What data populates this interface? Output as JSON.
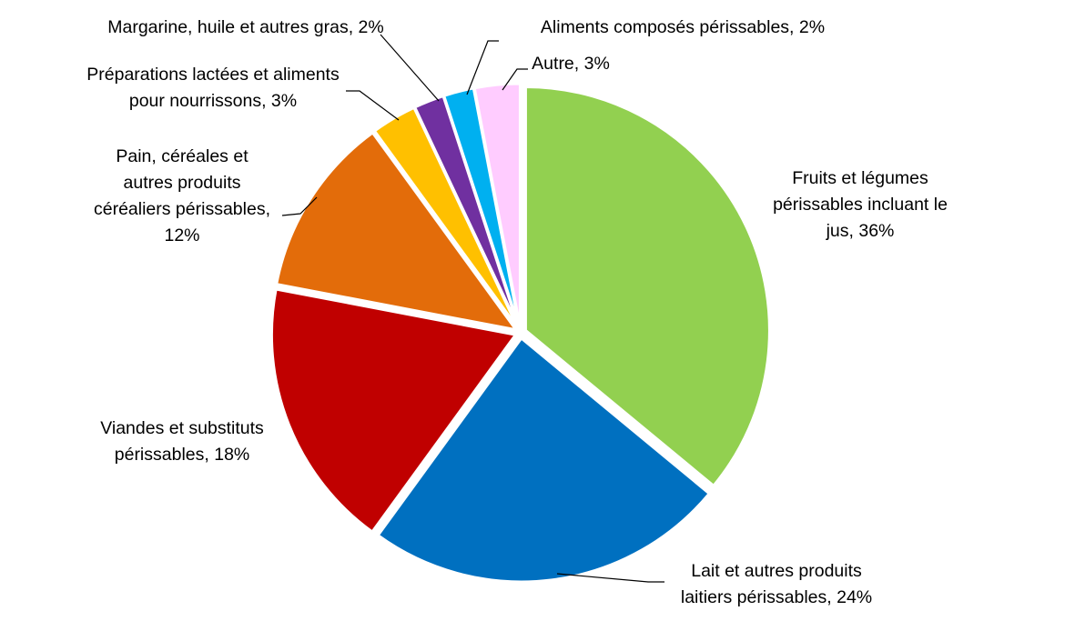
{
  "chart_data": {
    "type": "pie",
    "title": "",
    "slices": [
      {
        "label": "Fruits et légumes périssables incluant le jus, 36%",
        "lines": [
          "Fruits et légumes",
          "périssables incluant le",
          "jus, 36%"
        ],
        "value": 36,
        "color": "#92D050"
      },
      {
        "label": "Lait et autres produits laitiers périssables, 24%",
        "lines": [
          "Lait et autres produits",
          "laitiers périssables, 24%"
        ],
        "value": 24,
        "color": "#0070C0"
      },
      {
        "label": "Viandes et substituts périssables, 18%",
        "lines": [
          "Viandes et substituts",
          "périssables, 18%"
        ],
        "value": 18,
        "color": "#C00000"
      },
      {
        "label": "Pain, céréales et autres produits céréaliers périssables, 12%",
        "lines": [
          "Pain, céréales et",
          "autres produits",
          "céréaliers périssables,",
          "12%"
        ],
        "value": 12,
        "color": "#E36C0A"
      },
      {
        "label": "Préparations lactées et aliments pour nourrissons, 3%",
        "lines": [
          "Préparations lactées et aliments",
          "pour nourrissons, 3%"
        ],
        "value": 3,
        "color": "#FFC000"
      },
      {
        "label": "Margarine, huile et autres gras, 2%",
        "lines": [
          "Margarine, huile et autres gras, 2%"
        ],
        "value": 2,
        "color": "#7030A0"
      },
      {
        "label": "Aliments composés périssables, 2%",
        "lines": [
          "Aliments composés périssables, 2%"
        ],
        "value": 2,
        "color": "#00B0F0"
      },
      {
        "label": "Autre, 3%",
        "lines": [
          "Autre, 3%"
        ],
        "value": 3,
        "color": "#FFCCFF"
      }
    ]
  }
}
